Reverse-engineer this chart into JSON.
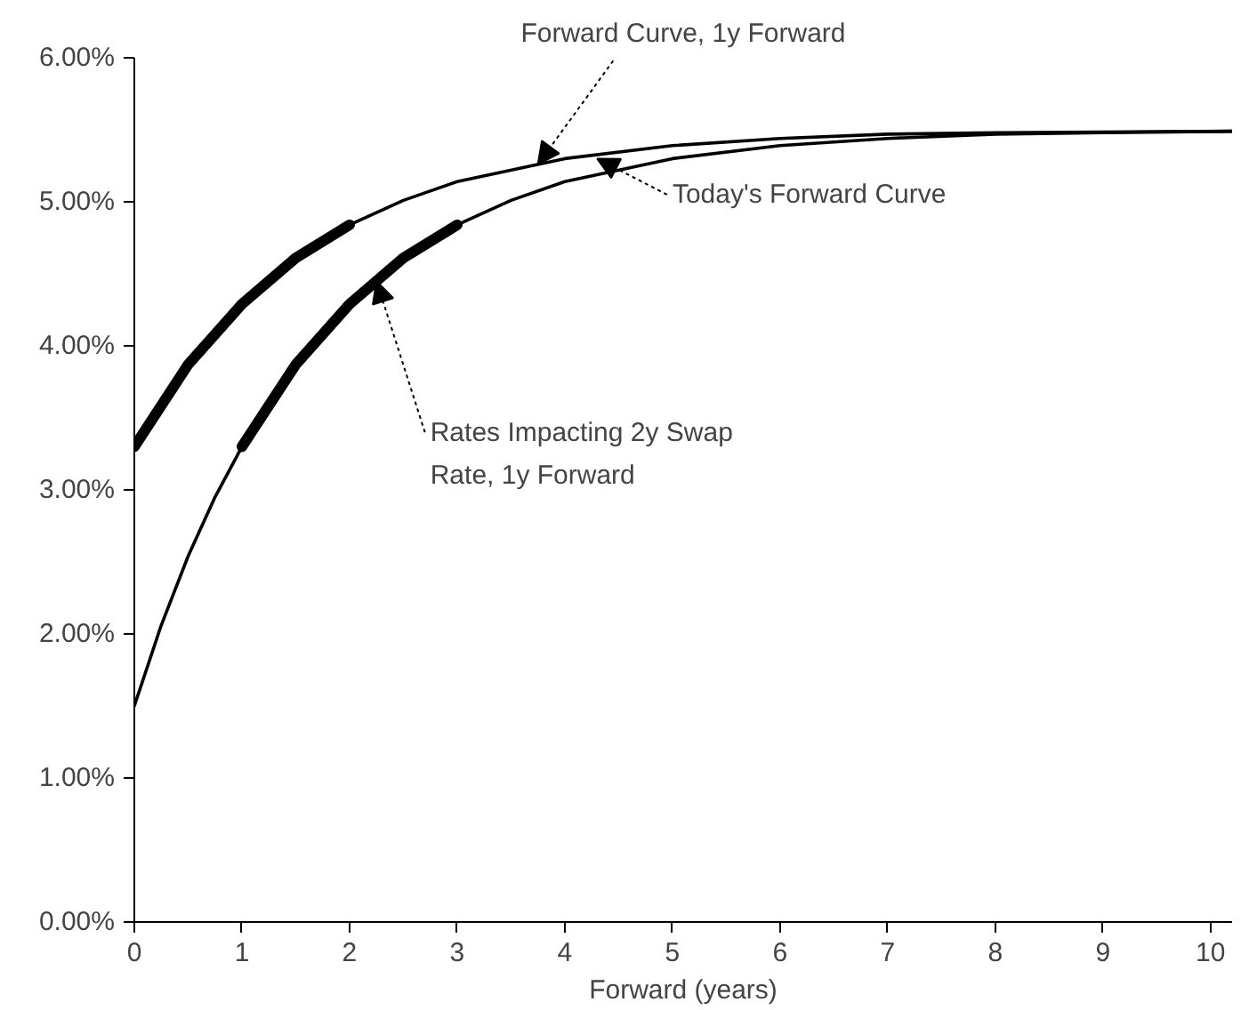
{
  "chart_data": {
    "type": "line",
    "xlabel": "Forward (years)",
    "xlim": [
      0,
      10.2
    ],
    "ylim": [
      0,
      6
    ],
    "xticks": [
      0,
      1,
      2,
      3,
      4,
      5,
      6,
      7,
      8,
      9,
      10
    ],
    "yticks": [
      {
        "value": 0,
        "label": "0.00%"
      },
      {
        "value": 1,
        "label": "1.00%"
      },
      {
        "value": 2,
        "label": "2.00%"
      },
      {
        "value": 3,
        "label": "3.00%"
      },
      {
        "value": 4,
        "label": "4.00%"
      },
      {
        "value": 5,
        "label": "5.00%"
      },
      {
        "value": 6,
        "label": "6.00%"
      }
    ],
    "grid": false,
    "marker": "none",
    "line_style": "solid",
    "series": [
      {
        "color": "#000000",
        "x": [
          0,
          0.25,
          0.5,
          0.75,
          1,
          1.5,
          2,
          2.5,
          3,
          3.5,
          4,
          5,
          6,
          7,
          8,
          9,
          10.2
        ],
        "values": [
          1.5,
          2.06,
          2.54,
          2.95,
          3.3,
          3.87,
          4.29,
          4.61,
          4.84,
          5.01,
          5.14,
          5.3,
          5.39,
          5.44,
          5.47,
          5.48,
          5.49
        ]
      },
      {
        "color": "#000000",
        "x": [
          0,
          0.5,
          1,
          1.5,
          2,
          2.5,
          3,
          4,
          5,
          6,
          7,
          8,
          10.2
        ],
        "values": [
          3.3,
          3.87,
          4.29,
          4.61,
          4.84,
          5.01,
          5.14,
          5.3,
          5.39,
          5.44,
          5.47,
          5.48,
          5.49
        ]
      },
      {
        "color": "#000000",
        "x": [
          0,
          0.5,
          1,
          1.5,
          2
        ],
        "values": [
          3.3,
          3.87,
          4.29,
          4.61,
          4.84
        ]
      },
      {
        "color": "#000000",
        "x": [
          1,
          1.5,
          2,
          2.5,
          3
        ],
        "values": [
          3.3,
          3.87,
          4.29,
          4.61,
          4.84
        ]
      }
    ],
    "annotations": [
      {
        "text": "Forward Curve, 1y Forward",
        "x": 3.75,
        "y": 5.26
      },
      {
        "text": "Today's Forward Curve",
        "x": 4.3,
        "y": 5.3
      },
      {
        "text": "Rates Impacting 2y Swap\nRate, 1y Forward",
        "x": 2.25,
        "y": 4.45
      }
    ]
  }
}
